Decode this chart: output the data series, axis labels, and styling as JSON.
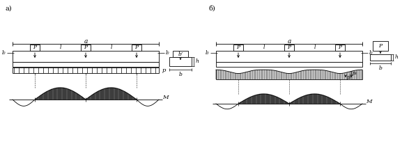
{
  "fig_width": 5.87,
  "fig_height": 2.04,
  "dpi": 100,
  "bg_color": "#ffffff",
  "line_color": "#000000",
  "label_a": "а)",
  "label_b": "б)",
  "text_a": "a",
  "text_P": "P",
  "text_l": "l",
  "text_l0": "l₀",
  "text_h": "h",
  "text_b": "b",
  "text_bprime": "b’",
  "text_p": "p",
  "text_M": "M",
  "text_p1": "p₁",
  "text_p2": "p₂"
}
